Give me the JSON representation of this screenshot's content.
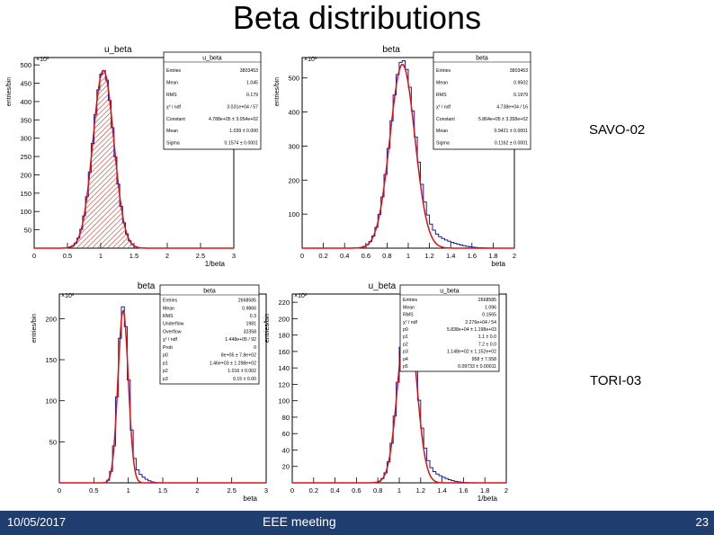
{
  "slide": {
    "title": "Beta distributions",
    "labels": {
      "savo": "SAVO-02",
      "tori": "TORI-03"
    },
    "footer": {
      "date": "10/05/2017",
      "center": "EEE meeting",
      "page": "23"
    }
  },
  "chart_data": [
    {
      "type": "histogram",
      "title": "u_beta",
      "xlabel": "1/beta",
      "ylabel": "entries/bin",
      "exponent": "×10³",
      "xlim": [
        0,
        3
      ],
      "ylim": [
        0,
        520
      ],
      "xticks": [
        0,
        0.5,
        1,
        1.5,
        2,
        2.5,
        3
      ],
      "yticks": [
        50,
        100,
        150,
        200,
        250,
        300,
        350,
        400,
        450,
        500
      ],
      "fit": {
        "mean": 1.04,
        "sigma": 0.157,
        "amplitude": 485
      },
      "fill": "hatched-red",
      "stats": {
        "title": "u_beta",
        "rows": [
          [
            "Entries",
            "3803453"
          ],
          [
            "Mean",
            "1.045"
          ],
          [
            "RMS",
            "0.179"
          ],
          [
            "χ² / ndf",
            "3.031e+04 / 57"
          ],
          [
            "Constant",
            "4.788e+05 ± 3.054e+02"
          ],
          [
            "Mean",
            "1.039 ± 0.000"
          ],
          [
            "Sigma",
            "0.1574 ± 0.0001"
          ]
        ]
      }
    },
    {
      "type": "histogram",
      "title": "beta",
      "xlabel": "beta",
      "ylabel": "entries/bin",
      "exponent": "×10³",
      "xlim": [
        0,
        2
      ],
      "ylim": [
        0,
        560
      ],
      "xticks": [
        0,
        0.2,
        0.4,
        0.6,
        0.8,
        1,
        1.2,
        1.4,
        1.6,
        1.8,
        2
      ],
      "yticks": [
        100,
        200,
        300,
        400,
        500
      ],
      "fit": {
        "mean": 0.945,
        "sigma": 0.117,
        "amplitude": 540
      },
      "stats": {
        "title": "beta",
        "rows": [
          [
            "Entries",
            "3803453"
          ],
          [
            "Mean",
            "0.9502"
          ],
          [
            "RMS",
            "0.1979"
          ],
          [
            "χ² / ndf",
            "4.738e+04 / 16"
          ],
          [
            "Constant",
            "5.864e+05 ± 3.358e+02"
          ],
          [
            "Mean",
            "0.9421 ± 0.0001"
          ],
          [
            "Sigma",
            "0.1162 ± 0.0001"
          ]
        ]
      }
    },
    {
      "type": "histogram",
      "title": "beta",
      "xlabel": "beta",
      "ylabel": "entries/bin",
      "exponent": "×10³",
      "xlim": [
        0,
        3
      ],
      "ylim": [
        0,
        230
      ],
      "xticks": [
        0,
        0.5,
        1,
        1.5,
        2,
        2.5,
        3
      ],
      "yticks": [
        50,
        100,
        150,
        200
      ],
      "fit": {
        "mean": 0.925,
        "sigma": 0.075,
        "amplitude": 210
      },
      "stats": {
        "title": "beta",
        "rows": [
          [
            "Entries",
            "2668585"
          ],
          [
            "Mean",
            "0.9866"
          ],
          [
            "RMS",
            "0.3"
          ],
          [
            "Underflow",
            "1981"
          ],
          [
            "Overflow",
            "32358"
          ],
          [
            "χ² / ndf",
            "1.448e+05 / 92"
          ],
          [
            "Prob",
            "0"
          ],
          [
            "p0",
            "8e+05 ± 7.8e+02"
          ],
          [
            "p1",
            "1.46e+03 ± 1.298e+02"
          ],
          [
            "p2",
            "1.016 ± 0.002"
          ],
          [
            "p3",
            "0.15 ± 0.00"
          ]
        ]
      }
    },
    {
      "type": "histogram",
      "title": "u_beta",
      "xlabel": "1/beta",
      "ylabel": "entries/bin",
      "exponent": "×10³",
      "xlim": [
        0,
        2
      ],
      "ylim": [
        0,
        230
      ],
      "xticks": [
        0,
        0.2,
        0.4,
        0.6,
        0.8,
        1,
        1.2,
        1.4,
        1.6,
        1.8,
        2
      ],
      "yticks": [
        20,
        40,
        60,
        80,
        100,
        120,
        140,
        160,
        180,
        200,
        220
      ],
      "fit": {
        "mean": 1.075,
        "sigma": 0.085,
        "amplitude": 210
      },
      "stats": {
        "title": "u_beta",
        "rows": [
          [
            "Entries",
            "2668585"
          ],
          [
            "Mean",
            "1.096"
          ],
          [
            "RMS",
            "0.1565"
          ],
          [
            "χ² / ndf",
            "2.276e+04 / 54"
          ],
          [
            "p0",
            "5.838e+04 ± 1.198e+03"
          ],
          [
            "p1",
            "1.1 ± 0.0"
          ],
          [
            "p2",
            "7.2 ± 0.0"
          ],
          [
            "p3",
            "1.148e+02 ± 1.152e+02"
          ],
          [
            "p4",
            "958 ± 7.558"
          ],
          [
            "p5",
            "0.09733 ± 0.00011"
          ]
        ]
      }
    }
  ]
}
